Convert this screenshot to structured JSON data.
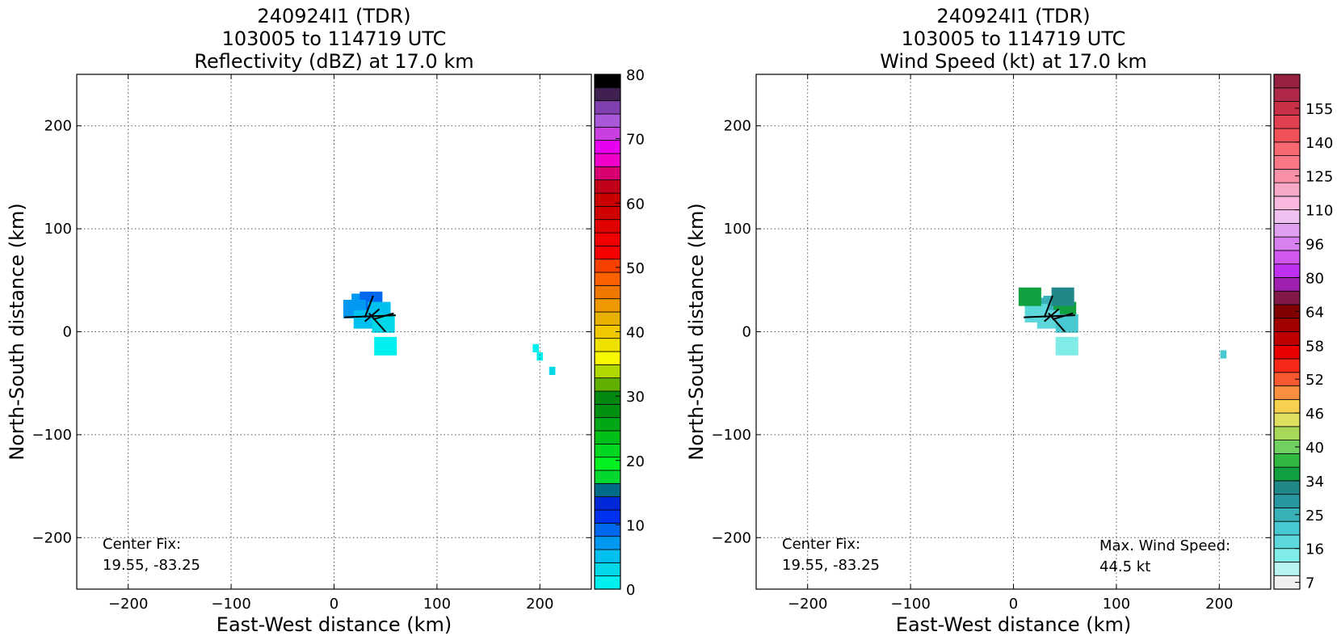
{
  "chart_data": [
    {
      "type": "heatmap",
      "title": [
        "240924I1 (TDR)",
        "103005 to 114719 UTC",
        "Reflectivity (dBZ) at 17.0 km"
      ],
      "xlabel": "East-West distance (km)",
      "ylabel": "North-South distance (km)",
      "xlim": [
        -250,
        250
      ],
      "ylim": [
        -250,
        250
      ],
      "xticks": [
        -200,
        -100,
        0,
        100,
        200
      ],
      "yticks": [
        200,
        100,
        0,
        -100,
        -200
      ],
      "xtick_labels": [
        "−200",
        "−100",
        "0",
        "100",
        "200"
      ],
      "ytick_labels": [
        "200",
        "100",
        "0",
        "−100",
        "−200"
      ],
      "grid": true,
      "annotations": [
        "Center Fix:",
        "19.55, -83.25"
      ],
      "colorbar": {
        "ticks": [
          0,
          10,
          20,
          30,
          40,
          50,
          60,
          70,
          80
        ],
        "tick_labels": [
          "0",
          "10",
          "20",
          "30",
          "40",
          "50",
          "60",
          "70",
          "80"
        ],
        "colors": [
          "#00f0f0",
          "#00d8e8",
          "#00c0f0",
          "#0098f0",
          "#0068f0",
          "#0030f0",
          "#0028d8",
          "#006c88",
          "#00d830",
          "#00f020",
          "#00d820",
          "#00c018",
          "#00a818",
          "#009010",
          "#008810",
          "#60b000",
          "#b0d800",
          "#f8f800",
          "#f0e000",
          "#f0c800",
          "#e8b000",
          "#f09800",
          "#f07800",
          "#f86000",
          "#f84000",
          "#f80000",
          "#f00000",
          "#e00000",
          "#d00000",
          "#c80000",
          "#c00018",
          "#d80070",
          "#f000c8",
          "#e800f0",
          "#c840e0",
          "#a858d8",
          "#8040b0",
          "#402050",
          "#000000"
        ]
      },
      "cells": [
        {
          "x": 28,
          "y": 28,
          "v": 8
        },
        {
          "x": 36,
          "y": 30,
          "v": 10
        },
        {
          "x": 20,
          "y": 22,
          "v": 8
        },
        {
          "x": 44,
          "y": 20,
          "v": 6
        },
        {
          "x": 30,
          "y": 12,
          "v": 6
        },
        {
          "x": 48,
          "y": 8,
          "v": 4
        },
        {
          "x": 50,
          "y": -14,
          "v": 2
        },
        {
          "x": 200,
          "y": -24,
          "v": 2
        },
        {
          "x": 196,
          "y": -16,
          "v": 2
        },
        {
          "x": 212,
          "y": -38,
          "v": 4
        }
      ]
    },
    {
      "type": "heatmap",
      "title": [
        "240924I1 (TDR)",
        "103005 to 114719 UTC",
        "Wind Speed (kt) at 17.0 km"
      ],
      "xlabel": "East-West distance (km)",
      "ylabel": "North-South distance (km)",
      "xlim": [
        -250,
        250
      ],
      "ylim": [
        -250,
        250
      ],
      "xticks": [
        -200,
        -100,
        0,
        100,
        200
      ],
      "yticks": [
        200,
        100,
        0,
        -100,
        -200
      ],
      "xtick_labels": [
        "−200",
        "−100",
        "0",
        "100",
        "200"
      ],
      "ytick_labels": [
        "200",
        "100",
        "0",
        "−100",
        "−200"
      ],
      "grid": true,
      "annotations": [
        "Center Fix:",
        "19.55, -83.25",
        "Max. Wind Speed:",
        "44.5 kt"
      ],
      "colorbar": {
        "ticks": [
          7,
          16,
          25,
          34,
          40,
          46,
          52,
          58,
          64,
          80,
          96,
          110,
          125,
          140,
          155
        ],
        "tick_labels": [
          "7",
          "16",
          "25",
          "34",
          "40",
          "46",
          "52",
          "58",
          "64",
          "80",
          "96",
          "110",
          "125",
          "140",
          "155"
        ],
        "colors": [
          "#f0f0f0",
          "#b8f4f0",
          "#80ece8",
          "#5cd8dc",
          "#48c8d0",
          "#38b0b8",
          "#2898a0",
          "#208888",
          "#10a040",
          "#30b840",
          "#70d060",
          "#a8d858",
          "#e0e060",
          "#f8d050",
          "#f89040",
          "#f85830",
          "#f82818",
          "#e80000",
          "#c00000",
          "#a00000",
          "#800000",
          "#801848",
          "#a020b0",
          "#c030f0",
          "#d058f0",
          "#d880f0",
          "#e0a0f0",
          "#f0c0f0",
          "#f8b8e0",
          "#f8a8c8",
          "#f890a8",
          "#f87888",
          "#f86870",
          "#f05058",
          "#e04050",
          "#c83048",
          "#b02848",
          "#982040"
        ]
      },
      "cells": [
        {
          "x": 30,
          "y": 24,
          "v": 30
        },
        {
          "x": 40,
          "y": 26,
          "v": 28
        },
        {
          "x": 22,
          "y": 18,
          "v": 22
        },
        {
          "x": 50,
          "y": 20,
          "v": 40
        },
        {
          "x": 34,
          "y": 12,
          "v": 20
        },
        {
          "x": 52,
          "y": 8,
          "v": 24
        },
        {
          "x": 52,
          "y": -14,
          "v": 18
        },
        {
          "x": 204,
          "y": -22,
          "v": 25
        },
        {
          "x": 16,
          "y": 34,
          "v": 42
        },
        {
          "x": 48,
          "y": 34,
          "v": 36
        }
      ]
    }
  ]
}
